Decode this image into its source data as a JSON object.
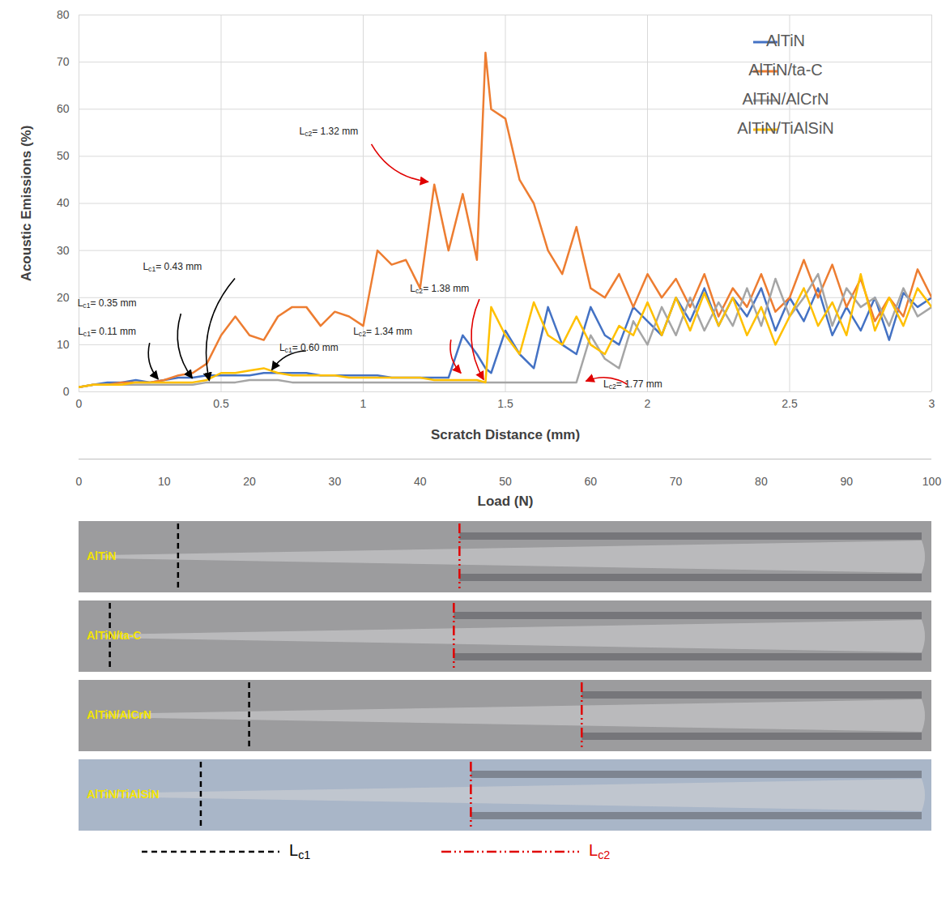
{
  "chart_data": {
    "type": "line",
    "x_label": "Scratch Distance (mm)",
    "y_label": "Acoustic Emissions (%)",
    "xlim": [
      0,
      3
    ],
    "xticks": [
      0,
      0.5,
      1,
      1.5,
      2,
      2.5,
      3
    ],
    "ylim": [
      0,
      80
    ],
    "yticks": [
      0,
      10,
      20,
      30,
      40,
      50,
      60,
      70,
      80
    ],
    "grid": true,
    "legend": "top-right",
    "x2_label": "Load (N)",
    "x2lim": [
      0,
      100
    ],
    "x2ticks": [
      0,
      10,
      20,
      30,
      40,
      50,
      60,
      70,
      80,
      90,
      100
    ],
    "x": [
      0,
      0.05,
      0.1,
      0.15,
      0.2,
      0.25,
      0.3,
      0.35,
      0.4,
      0.45,
      0.5,
      0.55,
      0.6,
      0.65,
      0.7,
      0.75,
      0.8,
      0.85,
      0.9,
      0.95,
      1,
      1.05,
      1.1,
      1.15,
      1.2,
      1.25,
      1.3,
      1.35,
      1.4,
      1.43,
      1.45,
      1.5,
      1.55,
      1.6,
      1.65,
      1.7,
      1.75,
      1.8,
      1.85,
      1.9,
      1.95,
      2,
      2.05,
      2.1,
      2.15,
      2.2,
      2.25,
      2.3,
      2.35,
      2.4,
      2.45,
      2.5,
      2.55,
      2.6,
      2.65,
      2.7,
      2.75,
      2.8,
      2.85,
      2.9,
      2.95,
      3
    ],
    "series": [
      {
        "name": "AlTiN",
        "color": "#4472c4",
        "values": [
          1,
          1.5,
          2,
          2,
          2.5,
          2,
          2.5,
          3,
          3,
          3.5,
          3.5,
          3.5,
          3.5,
          4,
          4,
          4,
          4,
          3.5,
          3.5,
          3.5,
          3.5,
          3.5,
          3,
          3,
          3,
          3,
          3,
          12,
          8,
          5,
          4,
          13,
          8,
          5,
          18,
          10,
          8,
          18,
          12,
          10,
          18,
          15,
          12,
          20,
          15,
          22,
          14,
          20,
          16,
          22,
          13,
          20,
          15,
          22,
          12,
          18,
          13,
          20,
          11,
          21,
          18,
          20
        ]
      },
      {
        "name": "AlTiN/ta-C",
        "color": "#ed7d31",
        "values": [
          1,
          1.5,
          1.5,
          2,
          2,
          2,
          2.5,
          3.5,
          4,
          6,
          12,
          16,
          12,
          11,
          16,
          18,
          18,
          14,
          17,
          16,
          14,
          30,
          27,
          28,
          22,
          44,
          30,
          42,
          28,
          72,
          60,
          58,
          45,
          40,
          30,
          25,
          35,
          22,
          20,
          25,
          18,
          25,
          20,
          24,
          18,
          25,
          16,
          22,
          18,
          25,
          17,
          20,
          28,
          20,
          27,
          18,
          24,
          15,
          20,
          16,
          26,
          20
        ]
      },
      {
        "name": "AlTiN/AlCrN",
        "color": "#a5a5a5",
        "values": [
          1,
          1.5,
          1.5,
          1.5,
          1.5,
          1.5,
          1.5,
          1.5,
          1.5,
          2,
          2,
          2,
          2.5,
          2.5,
          2.5,
          2,
          2,
          2,
          2,
          2,
          2,
          2,
          2,
          2,
          2,
          2,
          2,
          2,
          2,
          2,
          2,
          2,
          2,
          2,
          2,
          2,
          2,
          12,
          7,
          5,
          15,
          10,
          18,
          12,
          20,
          13,
          19,
          14,
          22,
          14,
          24,
          16,
          20,
          25,
          14,
          22,
          18,
          20,
          14,
          22,
          16,
          18
        ]
      },
      {
        "name": "AlTiN/TiAlSiN",
        "color": "#ffc000",
        "values": [
          1,
          1.5,
          1.5,
          1.5,
          2,
          2,
          2,
          2,
          2,
          2.5,
          4,
          4,
          4.5,
          5,
          4,
          3.5,
          3.5,
          3.5,
          3.5,
          3,
          3,
          3,
          3,
          3,
          3,
          2.5,
          2.5,
          2.5,
          2.5,
          2,
          18,
          12,
          8,
          19,
          12,
          10,
          16,
          10,
          8,
          14,
          12,
          19,
          12,
          20,
          13,
          21,
          14,
          20,
          12,
          18,
          10,
          16,
          22,
          14,
          19,
          12,
          25,
          13,
          20,
          14,
          22,
          18
        ]
      }
    ],
    "annotations": [
      {
        "text": "Lc1= 0.35 mm",
        "x": 0.1,
        "y": 18.5,
        "from": [
          0.36,
          16.5
        ],
        "to": [
          0.4,
          2.8
        ]
      },
      {
        "text": "Lc1= 0.11 mm",
        "x": 0.1,
        "y": 12.6,
        "from": [
          0.25,
          10.3
        ],
        "to": [
          0.28,
          2.6
        ]
      },
      {
        "text": "Lc1= 0.43 mm",
        "x": 0.33,
        "y": 26.3,
        "from": [
          0.55,
          24.0
        ],
        "to": [
          0.46,
          2.3
        ]
      },
      {
        "text": "Lc1= 0.60 mm",
        "x": 0.81,
        "y": 9.1,
        "from": [
          0.8,
          8.6
        ],
        "to": [
          0.68,
          4.6
        ]
      },
      {
        "text": "Lc2= 1.32 mm",
        "x": 0.88,
        "y": 55.0,
        "from": [
          1.03,
          52.5
        ],
        "to": [
          1.23,
          44.5
        ]
      },
      {
        "text": "Lc2= 1.38 mm",
        "x": 1.27,
        "y": 21.7,
        "from": [
          1.41,
          19.6
        ],
        "to": [
          1.425,
          2.5
        ]
      },
      {
        "text": "Lc2= 1.34 mm",
        "x": 1.07,
        "y": 12.6,
        "from": [
          1.31,
          11.0
        ],
        "to": [
          1.345,
          3.9
        ]
      },
      {
        "text": "Lc2= 1.77 mm",
        "x": 1.95,
        "y": 1.4,
        "from": [
          1.93,
          1.5
        ],
        "to": [
          1.785,
          2.2
        ]
      }
    ],
    "panels": [
      {
        "label": "AlTiN",
        "Lc1": 0.35,
        "Lc2": 1.34
      },
      {
        "label": "AlTiN/ta-C",
        "Lc1": 0.11,
        "Lc2": 1.32
      },
      {
        "label": "AlTiN/AlCrN",
        "Lc1": 0.6,
        "Lc2": 1.77
      },
      {
        "label": "AlTiN/TiAlSiN",
        "Lc1": 0.43,
        "Lc2": 1.38
      }
    ],
    "critical_load_lines": [
      {
        "name": "Lc1",
        "color": "#000000",
        "line_style": "dashed"
      },
      {
        "name": "Lc2",
        "color": "#e00000",
        "line_style": "dashdot"
      }
    ]
  }
}
